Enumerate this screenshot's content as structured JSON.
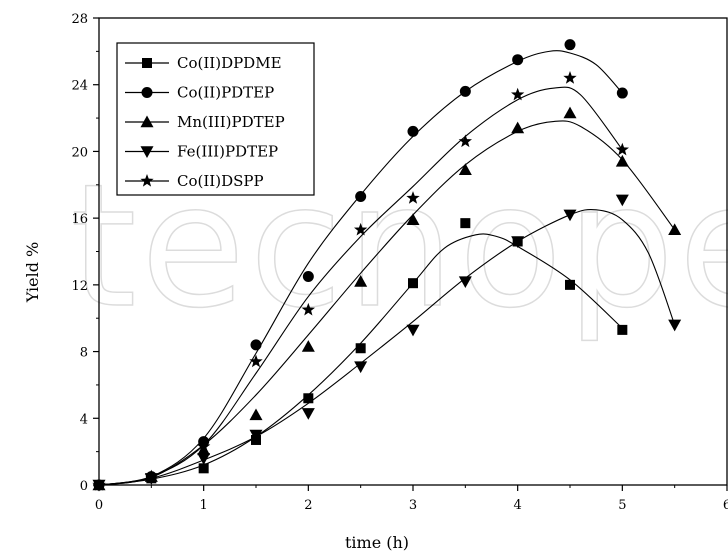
{
  "watermark_text": "tecnope",
  "chart_data": {
    "type": "line",
    "title": "",
    "xlabel": "time (h)",
    "ylabel": "Yield %",
    "xlim": [
      0,
      6
    ],
    "ylim": [
      0,
      28
    ],
    "xticks": [
      0,
      1,
      2,
      3,
      4,
      5,
      6
    ],
    "yticks": [
      0,
      4,
      8,
      12,
      16,
      20,
      24,
      28
    ],
    "xtick_labels": [
      "0",
      "1",
      "2",
      "3",
      "4",
      "5",
      "6"
    ],
    "ytick_labels": [
      "0",
      "4",
      "8",
      "12",
      "16",
      "20",
      "24",
      "28"
    ],
    "grid": false,
    "legend_position": "top-left",
    "series": [
      {
        "name": "Co(II)DPDME",
        "marker": "square",
        "x": [
          0,
          0.5,
          1,
          1.5,
          2,
          2.5,
          3,
          3.5,
          4,
          4.5,
          5
        ],
        "y": [
          0.0,
          0.4,
          1.0,
          2.7,
          5.2,
          8.2,
          12.1,
          15.7,
          14.6,
          12.0,
          9.3
        ],
        "curve": [
          [
            0,
            0
          ],
          [
            0.5,
            0.35
          ],
          [
            1,
            1.2
          ],
          [
            1.5,
            2.9
          ],
          [
            2,
            5.4
          ],
          [
            2.5,
            8.5
          ],
          [
            3,
            12.1
          ],
          [
            3.3,
            14.2
          ],
          [
            3.6,
            15.0
          ],
          [
            3.8,
            14.9
          ],
          [
            4,
            14.3
          ],
          [
            4.5,
            12.3
          ],
          [
            5,
            9.4
          ]
        ]
      },
      {
        "name": "Co(II)PDTEP",
        "marker": "circle",
        "x": [
          0,
          0.5,
          1,
          1.5,
          2,
          2.5,
          3,
          3.5,
          4,
          4.5,
          5
        ],
        "y": [
          0.0,
          0.5,
          2.6,
          8.4,
          12.5,
          17.3,
          21.2,
          23.6,
          25.5,
          26.4,
          23.5
        ],
        "curve": [
          [
            0,
            0
          ],
          [
            0.5,
            0.5
          ],
          [
            1,
            2.8
          ],
          [
            1.5,
            7.9
          ],
          [
            2,
            13.3
          ],
          [
            2.5,
            17.4
          ],
          [
            3,
            20.9
          ],
          [
            3.5,
            23.6
          ],
          [
            4,
            25.4
          ],
          [
            4.3,
            26.0
          ],
          [
            4.5,
            25.9
          ],
          [
            4.75,
            25.2
          ],
          [
            5,
            23.5
          ]
        ]
      },
      {
        "name": "Mn(III)PDTEP",
        "marker": "triangle-up",
        "x": [
          0,
          0.5,
          1,
          1.5,
          2,
          2.5,
          3,
          3.5,
          4,
          4.5,
          5,
          5.5
        ],
        "y": [
          0.0,
          0.5,
          2.1,
          4.2,
          8.3,
          12.2,
          15.9,
          18.9,
          21.4,
          22.3,
          19.4,
          15.3
        ],
        "curve": [
          [
            0,
            0
          ],
          [
            0.5,
            0.45
          ],
          [
            1,
            2.4
          ],
          [
            1.5,
            5.4
          ],
          [
            2,
            9.0
          ],
          [
            2.5,
            12.7
          ],
          [
            3,
            16.2
          ],
          [
            3.5,
            19.2
          ],
          [
            4,
            21.2
          ],
          [
            4.35,
            21.8
          ],
          [
            4.6,
            21.5
          ],
          [
            5,
            19.5
          ],
          [
            5.5,
            15.3
          ]
        ]
      },
      {
        "name": "Fe(III)PDTEP",
        "marker": "triangle-down",
        "x": [
          0,
          0.5,
          1,
          1.5,
          2,
          2.5,
          3,
          3.5,
          4,
          4.5,
          5,
          5.5
        ],
        "y": [
          0.0,
          0.4,
          1.6,
          3.0,
          4.3,
          7.1,
          9.3,
          12.2,
          14.6,
          16.2,
          17.1,
          9.6
        ],
        "curve": [
          [
            0,
            0
          ],
          [
            0.5,
            0.4
          ],
          [
            1,
            1.5
          ],
          [
            1.5,
            2.9
          ],
          [
            2,
            4.9
          ],
          [
            2.5,
            7.3
          ],
          [
            3,
            9.8
          ],
          [
            3.5,
            12.4
          ],
          [
            4,
            14.6
          ],
          [
            4.5,
            16.2
          ],
          [
            4.75,
            16.5
          ],
          [
            5,
            15.9
          ],
          [
            5.25,
            13.9
          ],
          [
            5.5,
            9.6
          ]
        ]
      },
      {
        "name": "Co(II)DSPP",
        "marker": "star",
        "x": [
          0,
          0.5,
          1,
          1.5,
          2,
          2.5,
          3,
          3.5,
          4,
          4.5,
          5
        ],
        "y": [
          0.0,
          0.5,
          2.3,
          7.4,
          10.5,
          15.3,
          17.2,
          20.6,
          23.4,
          24.4,
          20.1
        ],
        "curve": [
          [
            0,
            0
          ],
          [
            0.5,
            0.5
          ],
          [
            1,
            2.4
          ],
          [
            1.5,
            6.7
          ],
          [
            2,
            11.3
          ],
          [
            2.5,
            14.9
          ],
          [
            3,
            17.9
          ],
          [
            3.5,
            20.9
          ],
          [
            4,
            23.1
          ],
          [
            4.35,
            23.8
          ],
          [
            4.6,
            23.4
          ],
          [
            5,
            20.1
          ]
        ]
      }
    ]
  }
}
